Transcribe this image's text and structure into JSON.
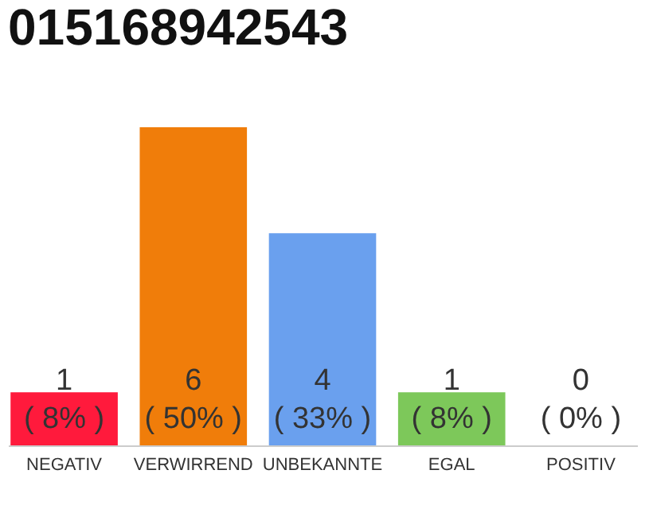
{
  "chart_data": {
    "type": "bar",
    "title": "015168942543",
    "categories": [
      "NEGATIV",
      "VERWIRREND",
      "UNBEKANNTE",
      "EGAL",
      "POSITIV"
    ],
    "values": [
      1,
      6,
      4,
      1,
      0
    ],
    "colors": [
      "#ff1a3c",
      "#f07d0a",
      "#6aa0ee",
      "#7dc85a",
      "#cccccc"
    ],
    "value_labels": [
      "1\n( 8% )",
      "6\n( 50% )",
      "4\n( 33% )",
      "1\n( 8% )",
      "0\n( 0% )"
    ],
    "ylim": [
      0,
      6
    ]
  }
}
